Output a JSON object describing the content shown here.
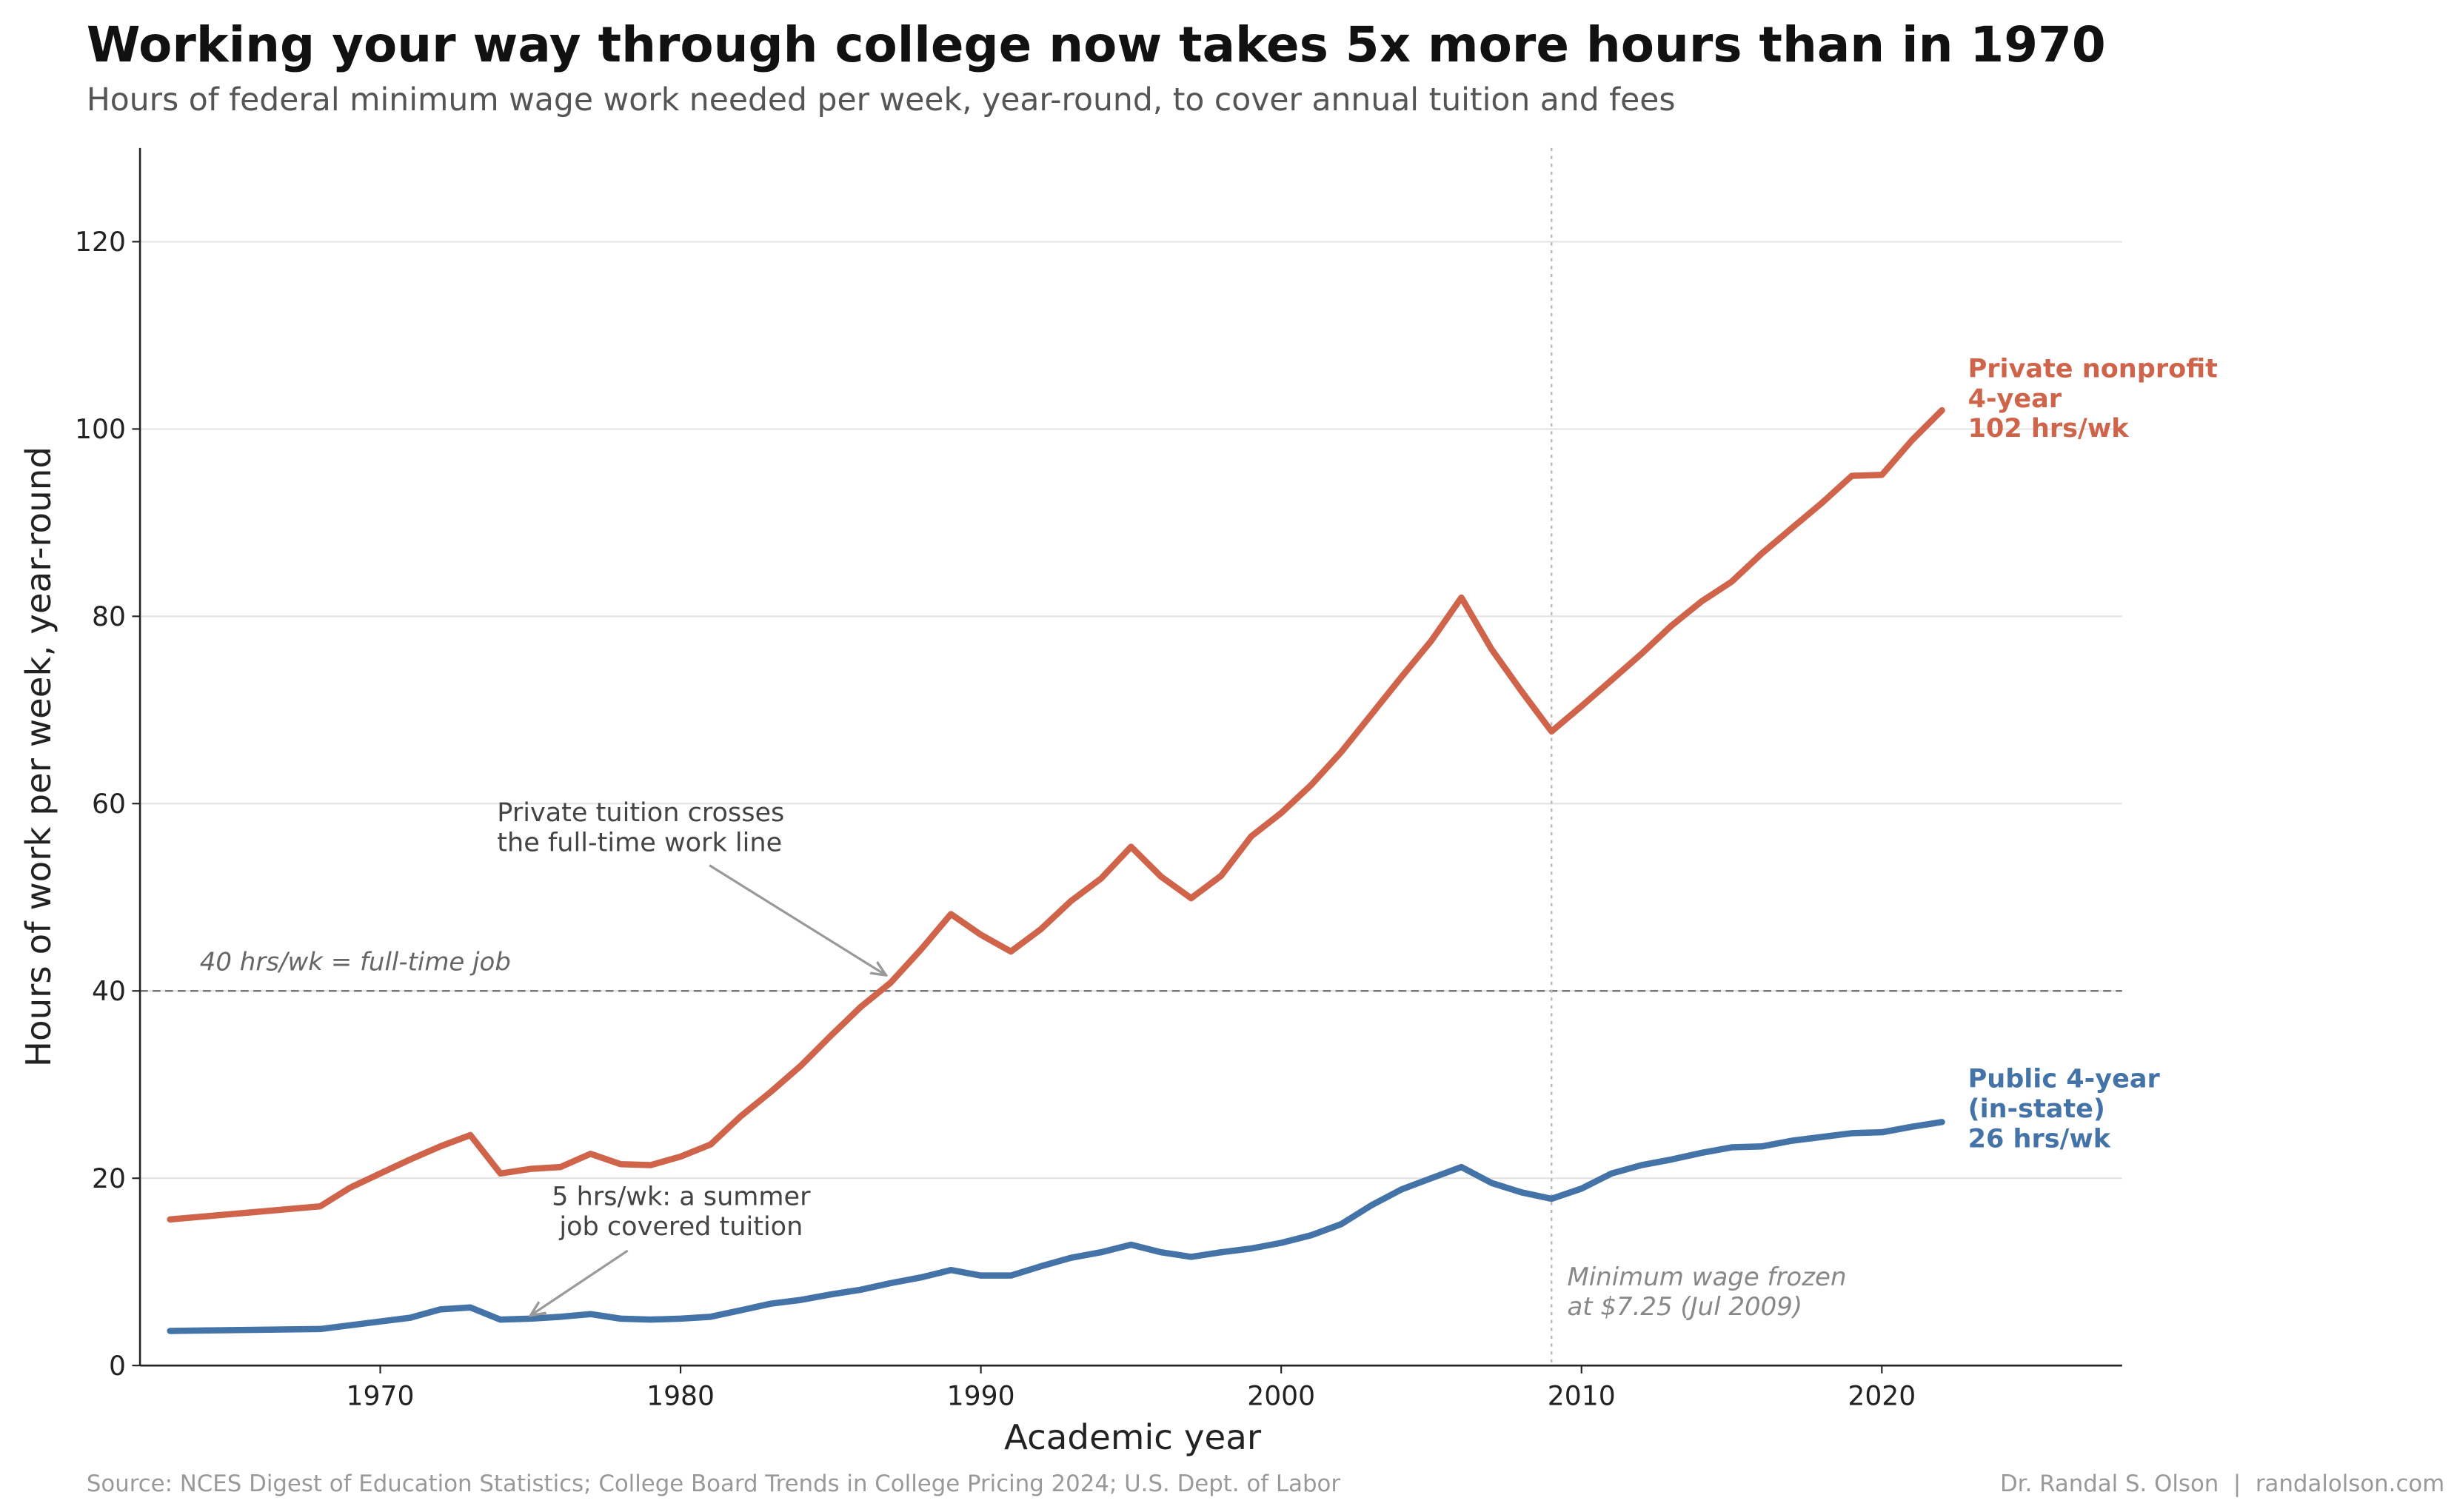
{
  "chart_data": {
    "type": "line",
    "title": "Working your way through college now takes 5x more hours than in 1970",
    "subtitle": "Hours of federal minimum wage work needed per week, year-round, to cover annual tuition and fees",
    "xlabel": "Academic year",
    "ylabel": "Hours of work per week, year-round",
    "xlim": [
      1962,
      2028
    ],
    "ylim": [
      0,
      130
    ],
    "xticks": [
      1970,
      1980,
      1990,
      2000,
      2010,
      2020
    ],
    "yticks": [
      0,
      20,
      40,
      60,
      80,
      100,
      120
    ],
    "grid": "horizontal",
    "colors": {
      "private": "#d0644a",
      "public": "#4473a8"
    },
    "x": [
      1963,
      1968,
      1969,
      1970,
      1971,
      1972,
      1973,
      1974,
      1975,
      1976,
      1977,
      1978,
      1979,
      1980,
      1981,
      1982,
      1983,
      1984,
      1985,
      1986,
      1987,
      1988,
      1989,
      1990,
      1991,
      1992,
      1993,
      1994,
      1995,
      1996,
      1997,
      1998,
      1999,
      2000,
      2001,
      2002,
      2003,
      2004,
      2005,
      2006,
      2007,
      2008,
      2009,
      2010,
      2011,
      2012,
      2013,
      2014,
      2015,
      2016,
      2017,
      2018,
      2019,
      2020,
      2021,
      2022
    ],
    "series": [
      {
        "name": "Private nonprofit 4-year",
        "key": "private",
        "values": [
          15.6,
          17,
          19,
          20.5,
          22,
          23.4,
          24.6,
          20.5,
          21,
          21.2,
          22.6,
          21.5,
          21.4,
          22.3,
          23.6,
          26.6,
          29.2,
          32,
          35.2,
          38.3,
          40.9,
          44.4,
          48.2,
          46,
          44.2,
          46.6,
          49.6,
          52,
          55.4,
          52.2,
          49.9,
          52.3,
          56.5,
          59,
          62,
          65.5,
          69.5,
          73.5,
          77.4,
          82,
          76.5,
          72,
          67.7,
          70.4,
          73.2,
          76,
          79,
          81.6,
          83.7,
          86.7,
          89.4,
          92.1,
          95,
          95.1,
          98.8,
          102
        ]
      },
      {
        "name": "Public 4-year (in-state)",
        "key": "public",
        "values": [
          3.7,
          3.9,
          4.3,
          4.7,
          5.1,
          6,
          6.2,
          4.9,
          5,
          5.2,
          5.5,
          5,
          4.9,
          5,
          5.2,
          5.9,
          6.6,
          7,
          7.6,
          8.1,
          8.8,
          9.4,
          10.2,
          9.6,
          9.6,
          10.6,
          11.5,
          12.1,
          12.9,
          12.1,
          11.6,
          12.1,
          12.5,
          13.1,
          13.9,
          15.1,
          17.1,
          18.8,
          20,
          21.2,
          19.5,
          18.5,
          17.8,
          18.9,
          20.5,
          21.4,
          22,
          22.7,
          23.3,
          23.4,
          24,
          24.4,
          24.8,
          24.9,
          25.5,
          26
        ]
      }
    ],
    "end_labels": {
      "private": [
        "Private nonprofit",
        "4-year",
        "102 hrs/wk"
      ],
      "public": [
        "Public 4-year",
        "(in-state)",
        "26 hrs/wk"
      ]
    },
    "reference_line": {
      "y": 40,
      "label": "40 hrs/wk = full-time job"
    },
    "vertical_line": {
      "x": 2009,
      "label": [
        "Minimum wage frozen",
        "at $7.25 (Jul 2009)"
      ]
    },
    "annotations": [
      {
        "text": [
          "Private tuition crosses",
          "the full-time work line"
        ],
        "points_to": [
          1987,
          41
        ]
      },
      {
        "text": [
          "5 hrs/wk: a summer",
          "job covered tuition"
        ],
        "points_to": [
          1975,
          5
        ]
      }
    ],
    "source": "Source: NCES Digest of Education Statistics; College Board Trends in College Pricing 2024; U.S. Dept. of Labor",
    "credit": "Dr. Randal S. Olson  |  randalolson.com"
  }
}
